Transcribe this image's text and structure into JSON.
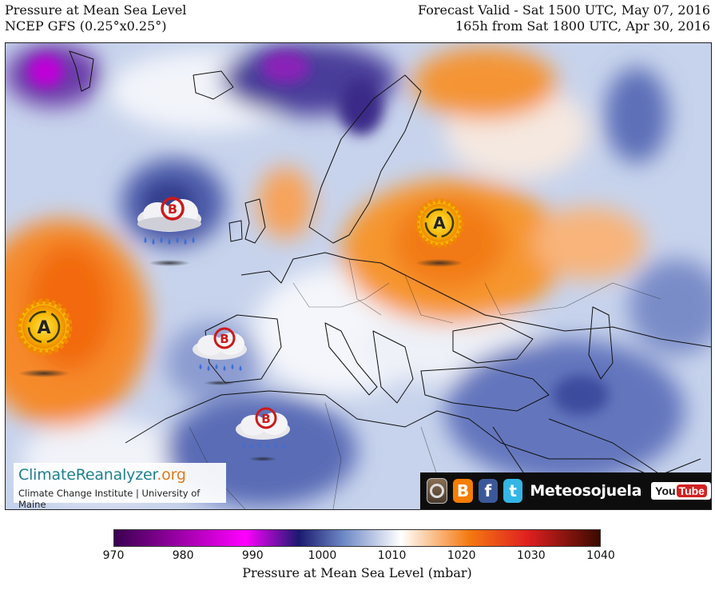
{
  "header": {
    "title": "Pressure at Mean Sea Level",
    "model": "NCEP GFS (0.25°x0.25°)",
    "valid": "Forecast Valid - Sat 1500 UTC, May 07, 2016",
    "lead": "165h from Sat 1800 UTC, Apr 30, 2016"
  },
  "map": {
    "region": "North Atlantic, Europe and North Africa",
    "systems": [
      {
        "type": "low",
        "label": "B",
        "name": "low-pressure-north-atlantic"
      },
      {
        "type": "high",
        "label": "A",
        "name": "high-pressure-eastern-europe"
      },
      {
        "type": "high",
        "label": "A",
        "name": "high-pressure-azores"
      },
      {
        "type": "low",
        "label": "B",
        "name": "low-pressure-iberia"
      },
      {
        "type": "low",
        "label": "B",
        "name": "low-pressure-north-africa"
      }
    ]
  },
  "branding": {
    "logo_part1": "ClimateReanalyzer",
    "logo_part2": ".org",
    "subtitle": "Climate Change Institute | University of Maine"
  },
  "social": {
    "name": "Meteosojuela",
    "youtube_you": "You",
    "youtube_tube": "Tube",
    "icons": [
      "instagram-icon",
      "blogger-icon",
      "facebook-icon",
      "twitter-icon",
      "youtube-icon"
    ]
  },
  "legend": {
    "title": "Pressure at Mean Sea Level (mbar)",
    "ticks": [
      "970",
      "980",
      "990",
      "1000",
      "1010",
      "1020",
      "1030",
      "1040"
    ],
    "min": 970,
    "max": 1040,
    "colors": {
      "low_end": "#3a0050",
      "magenta": "#ff00ff",
      "deep_blue": "#1a1a6e",
      "mid_blue": "#6b86c4",
      "neutral": "#ffffff",
      "orange": "#f47a10",
      "high_end": "#3a0a00"
    }
  }
}
